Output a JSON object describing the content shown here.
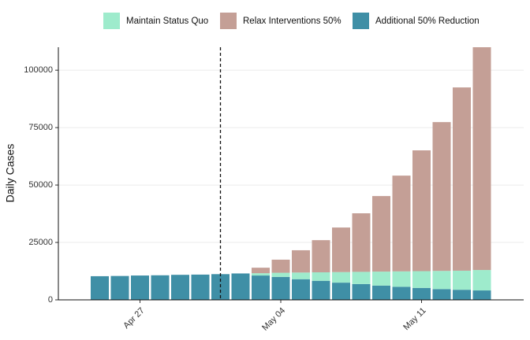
{
  "chart_data": {
    "type": "stacked_bar",
    "y_label": "Daily Cases",
    "categories": [
      null,
      null,
      "Apr 27",
      null,
      null,
      null,
      null,
      null,
      null,
      "May 04",
      null,
      null,
      null,
      null,
      null,
      null,
      "May 11",
      null,
      null,
      null
    ],
    "series": [
      {
        "name": "Maintain Status Quo",
        "color": "#9eebcc",
        "values": [
          0,
          0,
          0,
          0,
          0,
          0,
          0,
          0,
          1000,
          1800,
          2900,
          3700,
          4600,
          5300,
          6100,
          6700,
          7300,
          7900,
          8300,
          8900
        ]
      },
      {
        "name": "Relax Interventions 50%",
        "color": "#c49f96",
        "values": [
          0,
          0,
          0,
          0,
          0,
          0,
          0,
          0,
          2400,
          5700,
          9700,
          14000,
          19400,
          25500,
          32900,
          41700,
          52600,
          64800,
          79800,
          97000
        ]
      },
      {
        "name": "Additional 50% Reduction",
        "color": "#3f8fa6",
        "values": [
          10300,
          10400,
          10600,
          10700,
          10900,
          11000,
          11200,
          11500,
          10600,
          10000,
          9000,
          8300,
          7500,
          6900,
          6200,
          5700,
          5200,
          4700,
          4400,
          4100
        ]
      }
    ],
    "ylim": [
      0,
      110000
    ],
    "yticks": [
      0,
      25000,
      50000,
      75000,
      100000
    ],
    "grid": true,
    "legend": "top"
  }
}
